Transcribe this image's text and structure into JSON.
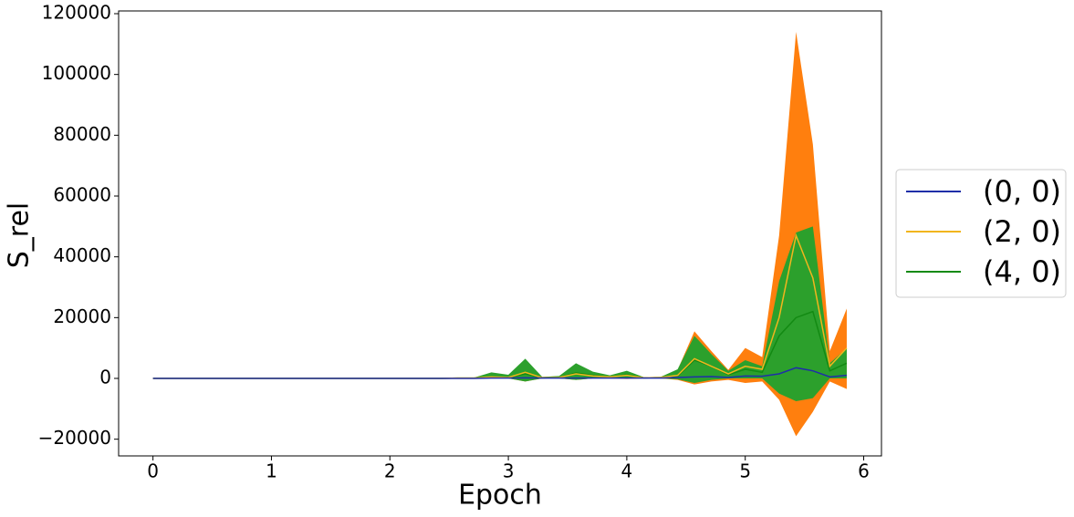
{
  "chart_data": {
    "type": "line",
    "x_label": "Epoch",
    "y_label": "S_rel",
    "x": [
      0,
      0.143,
      0.286,
      0.429,
      0.571,
      0.714,
      0.857,
      1,
      1.143,
      1.286,
      1.429,
      1.571,
      1.714,
      1.857,
      2,
      2.143,
      2.286,
      2.429,
      2.571,
      2.714,
      2.857,
      3,
      3.143,
      3.286,
      3.429,
      3.571,
      3.714,
      3.857,
      4,
      4.143,
      4.286,
      4.429,
      4.571,
      4.714,
      4.857,
      5,
      5.143,
      5.286,
      5.429,
      5.571,
      5.714,
      5.857
    ],
    "series": [
      {
        "name": "(0, 0)",
        "color": "#1f2ea8",
        "values": [
          0,
          0,
          0,
          0,
          0,
          0,
          0,
          0,
          0,
          0,
          0,
          0,
          0,
          0,
          0,
          0,
          0,
          0,
          0,
          0,
          100,
          100,
          200,
          100,
          100,
          100,
          100,
          100,
          100,
          100,
          100,
          300,
          500,
          600,
          300,
          800,
          700,
          1500,
          3500,
          2500,
          500,
          1000
        ]
      },
      {
        "name": "(2, 0)",
        "color": "#f2b51d",
        "band_color": "#ff7f0e",
        "values": [
          0,
          0,
          0,
          0,
          0,
          0,
          0,
          0,
          0,
          0,
          0,
          0,
          0,
          0,
          0,
          0,
          0,
          0,
          100,
          100,
          500,
          300,
          2000,
          200,
          300,
          1500,
          800,
          500,
          1000,
          200,
          300,
          1000,
          6500,
          4000,
          1500,
          4000,
          3000,
          20000,
          47000,
          33000,
          4000,
          10000
        ],
        "lower": [
          0,
          0,
          0,
          0,
          0,
          0,
          0,
          0,
          0,
          0,
          0,
          0,
          0,
          0,
          0,
          0,
          0,
          0,
          0,
          0,
          0,
          0,
          -1000,
          0,
          0,
          -500,
          0,
          0,
          -200,
          0,
          0,
          -500,
          -2000,
          -1000,
          -500,
          -1500,
          -1000,
          -7000,
          -19000,
          -11000,
          -1000,
          -3500
        ],
        "upper": [
          0,
          0,
          0,
          0,
          0,
          0,
          0,
          0,
          0,
          0,
          0,
          0,
          0,
          0,
          0,
          0,
          0,
          100,
          200,
          300,
          1800,
          1000,
          6000,
          500,
          700,
          4800,
          2000,
          900,
          2300,
          400,
          500,
          2800,
          15500,
          9000,
          2800,
          10000,
          7000,
          47000,
          114000,
          77000,
          9000,
          23000
        ]
      },
      {
        "name": "(4, 0)",
        "color": "#138a13",
        "band_color": "#2ca02c",
        "values": [
          0,
          0,
          0,
          0,
          0,
          0,
          0,
          0,
          0,
          0,
          0,
          0,
          0,
          0,
          0,
          0,
          0,
          0,
          100,
          100,
          400,
          300,
          1500,
          200,
          300,
          1800,
          1000,
          500,
          1200,
          200,
          300,
          800,
          6000,
          4000,
          1200,
          3000,
          2000,
          14000,
          20000,
          22000,
          2500,
          5000
        ],
        "lower": [
          0,
          0,
          0,
          0,
          0,
          0,
          0,
          0,
          0,
          0,
          0,
          0,
          0,
          0,
          0,
          0,
          0,
          0,
          0,
          0,
          0,
          0,
          -1000,
          0,
          0,
          -500,
          0,
          0,
          0,
          0,
          0,
          -300,
          -1500,
          -500,
          0,
          0,
          0,
          -5000,
          -7500,
          -6500,
          0,
          0
        ],
        "upper": [
          0,
          0,
          0,
          0,
          0,
          0,
          0,
          0,
          0,
          0,
          0,
          0,
          0,
          0,
          0,
          0,
          0,
          100,
          200,
          300,
          2000,
          1200,
          6500,
          500,
          800,
          5000,
          2200,
          1000,
          2500,
          400,
          500,
          3000,
          14000,
          8000,
          2500,
          6000,
          4000,
          32000,
          48000,
          50000,
          5000,
          10000
        ]
      }
    ],
    "xlim": [
      -0.29,
      6.15
    ],
    "ylim": [
      -25500,
      120900
    ],
    "xticks": [
      0,
      1,
      2,
      3,
      4,
      5,
      6
    ],
    "yticks": [
      {
        "value": -20000,
        "label": "−20000"
      },
      0,
      20000,
      40000,
      60000,
      80000,
      100000,
      120000
    ],
    "legend": "right"
  }
}
